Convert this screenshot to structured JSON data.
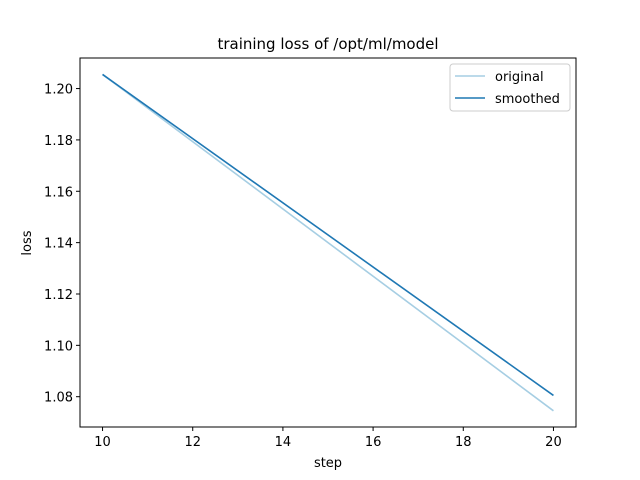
{
  "chart_data": {
    "type": "line",
    "title": "training loss of /opt/ml/model",
    "xlabel": "step",
    "ylabel": "loss",
    "xlim": [
      9.5,
      20.5
    ],
    "ylim": [
      1.0682,
      1.2119
    ],
    "x_ticks": [
      10,
      12,
      14,
      16,
      18,
      20
    ],
    "y_ticks": [
      1.08,
      1.1,
      1.12,
      1.14,
      1.16,
      1.18,
      1.2
    ],
    "y_tick_labels": [
      "1.08",
      "1.10",
      "1.12",
      "1.14",
      "1.16",
      "1.18",
      "1.20"
    ],
    "grid": false,
    "legend_position": "top-right",
    "series": [
      {
        "name": "original",
        "color": "#a6cee3",
        "x": [
          10,
          20
        ],
        "y": [
          1.2055,
          1.0745
        ]
      },
      {
        "name": "smoothed",
        "color": "#1f78b4",
        "x": [
          10,
          20
        ],
        "y": [
          1.2055,
          1.0805
        ]
      }
    ]
  }
}
